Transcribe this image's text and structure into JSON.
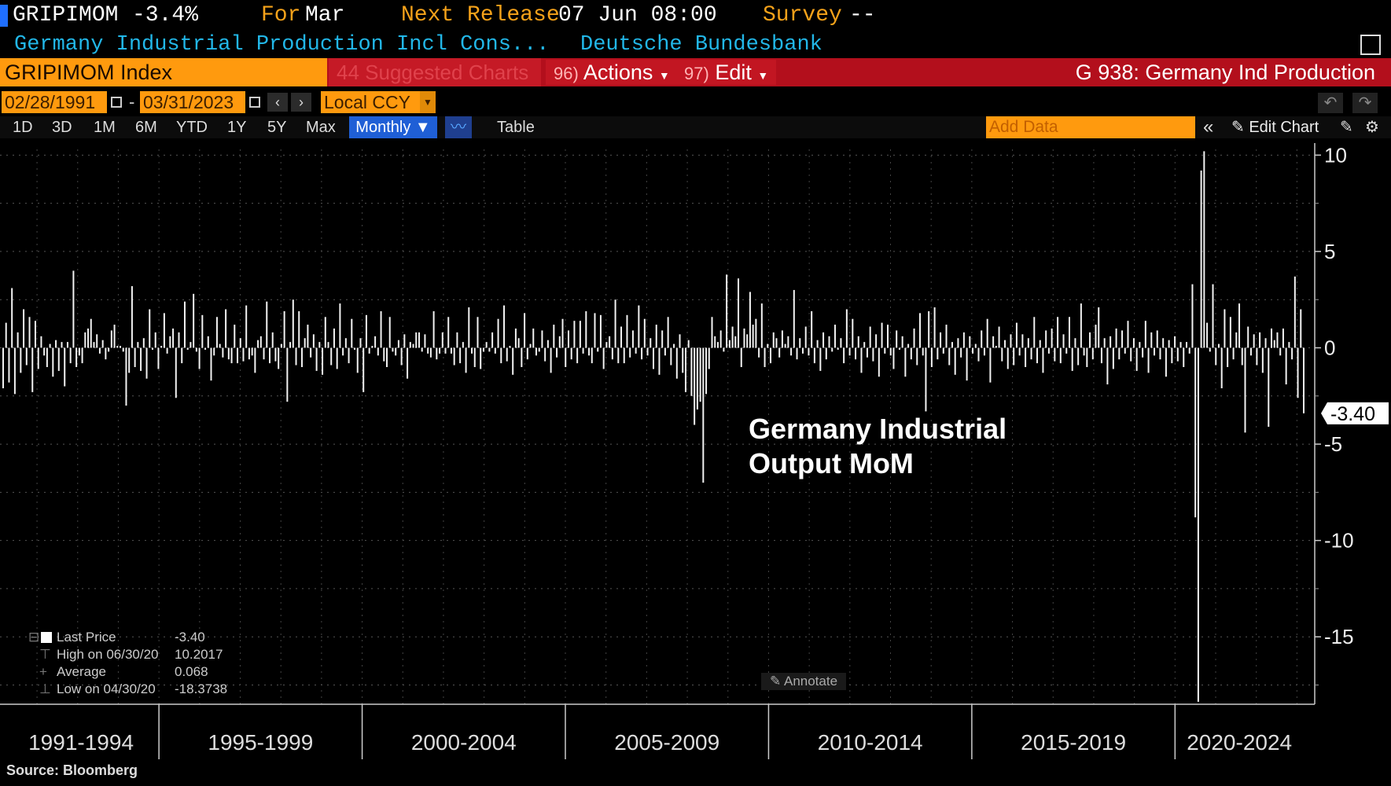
{
  "header": {
    "ticker": "GRIPIMOM",
    "last_change": "-3.4%",
    "for_label": "For",
    "for_period": "Mar",
    "next_release_label": "Next Release",
    "next_release_value": "07 Jun 08:00",
    "survey_label": "Survey",
    "survey_value": "--",
    "description": "Germany Industrial Production Incl Cons...",
    "source_org": "Deutsche Bundesbank",
    "security": "GRIPIMOM Index",
    "suggested_charts": "44 Suggested Charts",
    "actions_num": "96)",
    "actions_label": "Actions",
    "edit_num": "97)",
    "edit_label": "Edit",
    "chart_title": "G 938: Germany Ind Production",
    "brand_color": "#ff9a0e",
    "bar_color": "#b30f1c"
  },
  "dates": {
    "start": "02/28/1991",
    "end": "03/31/2023",
    "separator": "-",
    "currency": "Local CCY"
  },
  "toolbar": {
    "ranges": [
      "1D",
      "3D",
      "1M",
      "6M",
      "YTD",
      "1Y",
      "5Y",
      "Max"
    ],
    "frequency": "Monthly ▼",
    "table_label": "Table",
    "add_data_placeholder": "Add Data",
    "edit_chart_label": "Edit Chart",
    "icons": [
      "calendar-icon",
      "chevron-left-icon",
      "chevron-right-icon",
      "undo-icon",
      "redo-icon",
      "line-chart-icon",
      "collapse-icon",
      "pencil-icon",
      "gear-icon"
    ]
  },
  "chart_data": {
    "type": "bar",
    "title": "",
    "annotation": "Germany Industrial\nOutput MoM",
    "x_range": [
      "1991-03",
      "2023-03"
    ],
    "x_groups": [
      "1991-1994",
      "1995-1999",
      "2000-2004",
      "2005-2009",
      "2010-2014",
      "2015-2019",
      "2020-2024"
    ],
    "y_ticks": [
      10,
      5,
      0,
      -5,
      -10,
      -15
    ],
    "ylim": [
      -18.5,
      10.3
    ],
    "grid": true,
    "axis_side": "right",
    "last_value_label": "-3.40",
    "key_points": [
      {
        "date": "2020-03",
        "value": -8.8
      },
      {
        "date": "2020-04",
        "value": -18.3738
      },
      {
        "date": "2020-05",
        "value": 9.2
      },
      {
        "date": "2020-06",
        "value": 10.2017
      },
      {
        "date": "2023-03",
        "value": -3.4
      }
    ],
    "monthly_values": [
      -2.1,
      1.3,
      -1.8,
      3.1,
      -2.4,
      0.8,
      -1.3,
      2.0,
      -0.9,
      1.6,
      -2.3,
      1.4,
      -1.1,
      0.6,
      -0.4,
      -1.0,
      0.2,
      -1.5,
      0.4,
      -1.2,
      0.3,
      -2.0,
      0.3,
      -0.8,
      4.0,
      -1.0,
      -0.4,
      -0.8,
      0.8,
      1.0,
      1.5,
      0.3,
      0.7,
      -0.3,
      0.4,
      -0.6,
      -0.2,
      0.9,
      1.2,
      0.1,
      0.1,
      -0.2,
      -3.0,
      -1.3,
      3.2,
      -1.0,
      0.3,
      -1.2,
      0.5,
      -1.6,
      2.0,
      -0.1,
      0.8,
      -1.1,
      0.1,
      1.8,
      -0.3,
      0.6,
      1.0,
      -2.6,
      0.8,
      -0.8,
      2.4,
      -0.1,
      0.3,
      2.8,
      -0.2,
      -1.1,
      1.7,
      -0.1,
      0.6,
      -1.7,
      -0.4,
      1.6,
      0.2,
      -0.5,
      2.0,
      -0.6,
      -0.8,
      1.2,
      -0.8,
      0.5,
      -0.7,
      2.2,
      -0.6,
      -0.4,
      -1.3,
      0.4,
      0.6,
      -0.6,
      2.4,
      -0.8,
      0.8,
      -0.7,
      -1.1,
      0.2,
      1.9,
      -2.8,
      0.3,
      2.5,
      -0.9,
      1.9,
      -1.0,
      0.5,
      1.2,
      -0.5,
      0.7,
      -1.2,
      0.3,
      -1.4,
      1.6,
      0.3,
      -0.9,
      1.0,
      -1.1,
      2.3,
      -0.4,
      0.5,
      -0.8,
      1.5,
      -0.1,
      -1.3,
      0.5,
      -2.3,
      1.7,
      -0.3,
      0.1,
      0.6,
      -0.4,
      1.9,
      -0.7,
      -1.0,
      1.6,
      -0.2,
      -0.4,
      0.4,
      -0.9,
      0.7,
      -1.6,
      0.3,
      0.2,
      0.8,
      0.8,
      -0.2,
      0.7,
      -0.3,
      -0.5,
      1.9,
      -0.6,
      -0.3,
      0.8,
      -0.3,
      1.6,
      -0.3,
      -0.9,
      0.8,
      -0.8,
      0.3,
      -1.3,
      2.1,
      -0.3,
      -1.0,
      1.6,
      -1.1,
      -0.2,
      0.3,
      -0.2,
      0.8,
      -0.3,
      1.5,
      -0.8,
      2.2,
      -0.7,
      0.1,
      -1.4,
      1.0,
      0.5,
      -1.0,
      1.8,
      -0.6,
      0.2,
      1.0,
      -0.4,
      -0.2,
      0.9,
      -0.7,
      0.4,
      -1.3,
      1.2,
      -0.5,
      0.6,
      1.5,
      -1.0,
      0.9,
      -0.6,
      1.4,
      -0.8,
      1.4,
      -0.3,
      1.9,
      -0.4,
      -0.8,
      1.8,
      -0.2,
      1.7,
      -1.1,
      0.3,
      0.6,
      -0.6,
      2.5,
      -0.8,
      1.1,
      -0.8,
      1.7,
      -0.5,
      0.9,
      -0.3,
      2.2,
      -0.6,
      1.5,
      -0.4,
      0.5,
      -1.1,
      1.2,
      -1.4,
      0.9,
      -0.4,
      1.6,
      -0.9,
      0.2,
      -1.6,
      0.7,
      -1.3,
      -2.3,
      0.4,
      -2.5,
      -4.0,
      -3.2,
      -2.8,
      -7.0,
      -2.4,
      -1.1,
      1.6,
      0.6,
      0.3,
      0.9,
      -0.2,
      3.8,
      0.4,
      1.1,
      0.6,
      3.6,
      -1.0,
      1.0,
      0.7,
      2.9,
      1.2,
      1.5,
      -0.5,
      2.3,
      -1.0,
      0.2,
      -0.8,
      0.8,
      0.5,
      -0.5,
      0.9,
      0.2,
      0.6,
      -0.4,
      3.0,
      -0.6,
      0.5,
      -0.3,
      1.1,
      -0.4,
      1.9,
      -0.8,
      0.4,
      -1.2,
      0.8,
      -0.6,
      0.6,
      -0.2,
      1.2,
      -0.1,
      0.5,
      -0.8,
      2.0,
      -0.4,
      1.5,
      -0.6,
      0.6,
      -1.3,
      0.3,
      -0.5,
      1.1,
      -0.7,
      0.7,
      -1.5,
      1.3,
      -0.3,
      1.2,
      -0.4,
      -1.1,
      0.9,
      -0.1,
      0.6,
      -1.5,
      0.2,
      -0.6,
      1.0,
      -0.9,
      1.8,
      -0.4,
      -3.3,
      1.9,
      -1.0,
      2.1,
      -0.6,
      0.8,
      -0.3,
      1.2,
      -0.9,
      0.3,
      -1.4,
      0.5,
      -0.5,
      0.8,
      -1.7,
      0.6,
      -0.3,
      0.2,
      -0.7,
      0.9,
      -0.4,
      1.5,
      -1.8,
      0.6,
      0.1,
      1.1,
      -0.7,
      0.4,
      -1.1,
      0.7,
      -0.9,
      1.3,
      -0.4,
      0.7,
      -1.0,
      0.5,
      -0.6,
      1.6,
      -0.8,
      0.4,
      -1.3,
      0.9,
      -0.3,
      1.0,
      -0.7,
      1.6,
      -0.8,
      0.7,
      -0.3,
      1.6,
      -1.2,
      0.5,
      -0.9,
      2.3,
      -0.4,
      -1.0,
      0.8,
      -0.6,
      1.2,
      2.1,
      -0.8,
      0.5,
      -1.9,
      0.6,
      -1.1,
      1.0,
      -0.6,
      0.9,
      -0.3,
      1.4,
      -0.7,
      0.5,
      -1.2,
      0.3,
      -0.5,
      1.4,
      -1.3,
      0.8,
      -0.4,
      0.9,
      -0.6,
      0.5,
      -1.5,
      0.4,
      -0.8,
      0.6,
      -0.7,
      0.3,
      -1.0,
      0.3,
      -0.3,
      3.3,
      -8.8,
      -18.3738,
      9.2,
      10.2017,
      1.3,
      -0.2,
      3.3,
      -0.9,
      0.2,
      -2.1,
      2.0,
      -1.0,
      1.6,
      -0.6,
      0.8,
      2.3,
      -0.9,
      -4.4,
      1.1,
      -0.4,
      0.7,
      -0.9,
      0.8,
      -1.3,
      0.5,
      -4.1,
      1.0,
      0.4,
      0.8,
      -0.4,
      1.0,
      -1.9,
      0.3,
      -0.6,
      3.7,
      -2.6,
      2.0,
      -3.4
    ]
  },
  "legend": {
    "last_price_label": "Last Price",
    "last_price_value": "-3.40",
    "high_label": "High on 06/30/20",
    "high_value": "10.2017",
    "average_label": "Average",
    "average_value": "0.068",
    "low_label": "Low on 04/30/20",
    "low_value": "-18.3738"
  },
  "annotate_label": "Annotate",
  "source": "Source: Bloomberg"
}
